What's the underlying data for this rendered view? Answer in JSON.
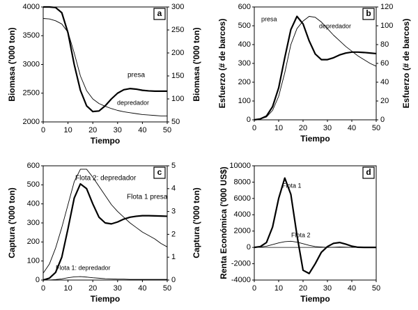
{
  "chart_data": [
    {
      "type": "line",
      "panel_label": "a",
      "xlabel": "Tiempo",
      "ylabel": "Biomasa  ('000 ton)",
      "y2label": "Biomasa ('000 ton)",
      "x": [
        0,
        2.5,
        5,
        7.5,
        10,
        12.5,
        15,
        17.5,
        20,
        22.5,
        25,
        27.5,
        30,
        32.5,
        35,
        37.5,
        40,
        42.5,
        45,
        47.5,
        50
      ],
      "xlim": [
        0,
        50
      ],
      "xticks": [
        0,
        10,
        20,
        30,
        40,
        50
      ],
      "ylim": [
        2000,
        4000
      ],
      "yticks": [
        2000,
        2500,
        3000,
        3500,
        4000
      ],
      "y2lim": [
        50,
        300
      ],
      "y2ticks": [
        50,
        100,
        150,
        200,
        250,
        300
      ],
      "series": [
        {
          "name": "presa",
          "color": "#000000",
          "linewidth": 2.2,
          "values": [
            4000,
            4000,
            3990,
            3900,
            3550,
            3000,
            2550,
            2280,
            2180,
            2190,
            2280,
            2400,
            2500,
            2560,
            2580,
            2570,
            2550,
            2540,
            2535,
            2535,
            2535
          ]
        },
        {
          "name": "depredador",
          "color": "#000000",
          "linewidth": 0.9,
          "axis": "y2",
          "values": [
            275,
            274,
            270,
            263,
            245,
            200,
            150,
            118,
            100,
            90,
            84,
            79,
            75,
            72,
            70,
            68,
            66,
            65,
            64,
            63,
            63
          ]
        }
      ]
    },
    {
      "type": "line",
      "panel_label": "b",
      "xlabel": "Tiempo",
      "ylabel": "Esfuerzo (# de barcos)",
      "y2label": "Esfuerzo (# de barcos)",
      "x": [
        0,
        2.5,
        5,
        7.5,
        10,
        12.5,
        15,
        17.5,
        20,
        22.5,
        25,
        27.5,
        30,
        32.5,
        35,
        37.5,
        40,
        42.5,
        45,
        47.5,
        50
      ],
      "xlim": [
        0,
        50
      ],
      "xticks": [
        0,
        10,
        20,
        30,
        40,
        50
      ],
      "ylim": [
        0,
        600
      ],
      "yticks": [
        0,
        100,
        200,
        300,
        400,
        500,
        600
      ],
      "y2lim": [
        0,
        120
      ],
      "y2ticks": [
        0,
        20,
        40,
        60,
        80,
        100,
        120
      ],
      "series": [
        {
          "name": "presa",
          "color": "#000000",
          "linewidth": 2.2,
          "values": [
            0,
            5,
            20,
            70,
            170,
            330,
            480,
            550,
            510,
            420,
            350,
            320,
            320,
            330,
            345,
            355,
            360,
            360,
            358,
            355,
            352
          ]
        },
        {
          "name": "depredador",
          "color": "#000000",
          "linewidth": 0.9,
          "axis": "y2",
          "values": [
            0,
            1,
            3,
            10,
            25,
            50,
            80,
            97,
            105,
            110,
            109,
            104,
            97,
            90,
            84,
            78,
            73,
            68,
            64,
            60,
            57
          ]
        }
      ]
    },
    {
      "type": "line",
      "panel_label": "c",
      "xlabel": "Tiempo",
      "ylabel": "Captura ('000 ton)",
      "y2label": "Captura ('000 ton)",
      "x": [
        0,
        2.5,
        5,
        7.5,
        10,
        12.5,
        15,
        17.5,
        20,
        22.5,
        25,
        27.5,
        30,
        32.5,
        35,
        37.5,
        40,
        42.5,
        45,
        47.5,
        50
      ],
      "xlim": [
        0,
        50
      ],
      "xticks": [
        0,
        10,
        20,
        30,
        40,
        50
      ],
      "ylim": [
        0,
        600
      ],
      "yticks": [
        0,
        100,
        200,
        300,
        400,
        500,
        600
      ],
      "y2lim": [
        0,
        5
      ],
      "y2ticks": [
        0,
        1,
        2,
        3,
        4,
        5
      ],
      "series": [
        {
          "name": "Flota 2: depredador",
          "color": "#000000",
          "linewidth": 0.9,
          "axis": "y2",
          "values": [
            0.3,
            0.7,
            1.4,
            2.3,
            3.3,
            4.3,
            4.85,
            4.85,
            4.5,
            4.1,
            3.7,
            3.3,
            3.0,
            2.75,
            2.5,
            2.3,
            2.1,
            1.95,
            1.8,
            1.6,
            1.45
          ]
        },
        {
          "name": "Flota 1 presa",
          "color": "#000000",
          "linewidth": 2.2,
          "values": [
            0,
            10,
            40,
            120,
            270,
            430,
            505,
            480,
            400,
            330,
            300,
            295,
            305,
            320,
            330,
            335,
            338,
            338,
            337,
            336,
            335
          ]
        },
        {
          "name": "Flota 1: depredador",
          "color": "#000000",
          "linewidth": 0.9,
          "axis": "y2",
          "values": [
            0,
            0,
            0.02,
            0.05,
            0.1,
            0.14,
            0.15,
            0.13,
            0.1,
            0.08,
            0.06,
            0.05,
            0.04,
            0.04,
            0.03,
            0.03,
            0.03,
            0.03,
            0.03,
            0.03,
            0.03
          ]
        }
      ]
    },
    {
      "type": "line",
      "panel_label": "d",
      "xlabel": "Tiempo",
      "ylabel": "Renta Económica ('000 US$)",
      "x": [
        0,
        2.5,
        5,
        7.5,
        10,
        12.5,
        15,
        17.5,
        20,
        22.5,
        25,
        27.5,
        30,
        32.5,
        35,
        37.5,
        40,
        42.5,
        45,
        47.5,
        50
      ],
      "xlim": [
        0,
        50
      ],
      "xticks": [
        0,
        10,
        20,
        30,
        40,
        50
      ],
      "ylim": [
        -4000,
        10000
      ],
      "yticks": [
        -4000,
        -2000,
        0,
        2000,
        4000,
        6000,
        8000,
        10000
      ],
      "series": [
        {
          "name": "Flota 1",
          "color": "#000000",
          "linewidth": 2.2,
          "values": [
            0,
            100,
            600,
            2500,
            6000,
            8500,
            6500,
            1500,
            -2800,
            -3200,
            -2000,
            -600,
            100,
            500,
            600,
            400,
            150,
            20,
            0,
            0,
            0
          ]
        },
        {
          "name": "Flota 2",
          "color": "#000000",
          "linewidth": 0.9,
          "values": [
            0,
            50,
            150,
            350,
            550,
            700,
            750,
            650,
            450,
            250,
            100,
            50,
            0,
            20,
            50,
            30,
            10,
            0,
            0,
            0,
            0
          ]
        }
      ]
    }
  ]
}
